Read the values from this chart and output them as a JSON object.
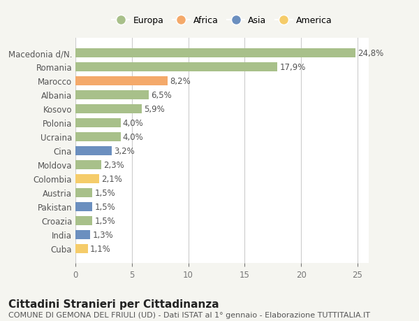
{
  "categories": [
    "Cuba",
    "India",
    "Croazia",
    "Pakistan",
    "Austria",
    "Colombia",
    "Moldova",
    "Cina",
    "Ucraina",
    "Polonia",
    "Kosovo",
    "Albania",
    "Marocco",
    "Romania",
    "Macedonia d/N."
  ],
  "values": [
    1.1,
    1.3,
    1.5,
    1.5,
    1.5,
    2.1,
    2.3,
    3.2,
    4.0,
    4.0,
    5.9,
    6.5,
    8.2,
    17.9,
    24.8
  ],
  "labels": [
    "1,1%",
    "1,3%",
    "1,5%",
    "1,5%",
    "1,5%",
    "2,1%",
    "2,3%",
    "3,2%",
    "4,0%",
    "4,0%",
    "5,9%",
    "6,5%",
    "8,2%",
    "17,9%",
    "24,8%"
  ],
  "continents": [
    "America",
    "Asia",
    "Europa",
    "Asia",
    "Europa",
    "America",
    "Europa",
    "Asia",
    "Europa",
    "Europa",
    "Europa",
    "Europa",
    "Africa",
    "Europa",
    "Europa"
  ],
  "colors": {
    "Europa": "#a8c08a",
    "Africa": "#f4a96a",
    "Asia": "#6b8fbf",
    "America": "#f5cc6a"
  },
  "legend_order": [
    "Europa",
    "Africa",
    "Asia",
    "America"
  ],
  "title": "Cittadini Stranieri per Cittadinanza",
  "subtitle": "COMUNE DI GEMONA DEL FRIULI (UD) - Dati ISTAT al 1° gennaio - Elaborazione TUTTITALIA.IT",
  "xlim": [
    0,
    26
  ],
  "xticks": [
    0,
    5,
    10,
    15,
    20,
    25
  ],
  "background_color": "#f5f5f0",
  "plot_background": "#ffffff",
  "grid_color": "#cccccc",
  "label_fontsize": 8.5,
  "tick_fontsize": 8.5,
  "title_fontsize": 11,
  "subtitle_fontsize": 8
}
